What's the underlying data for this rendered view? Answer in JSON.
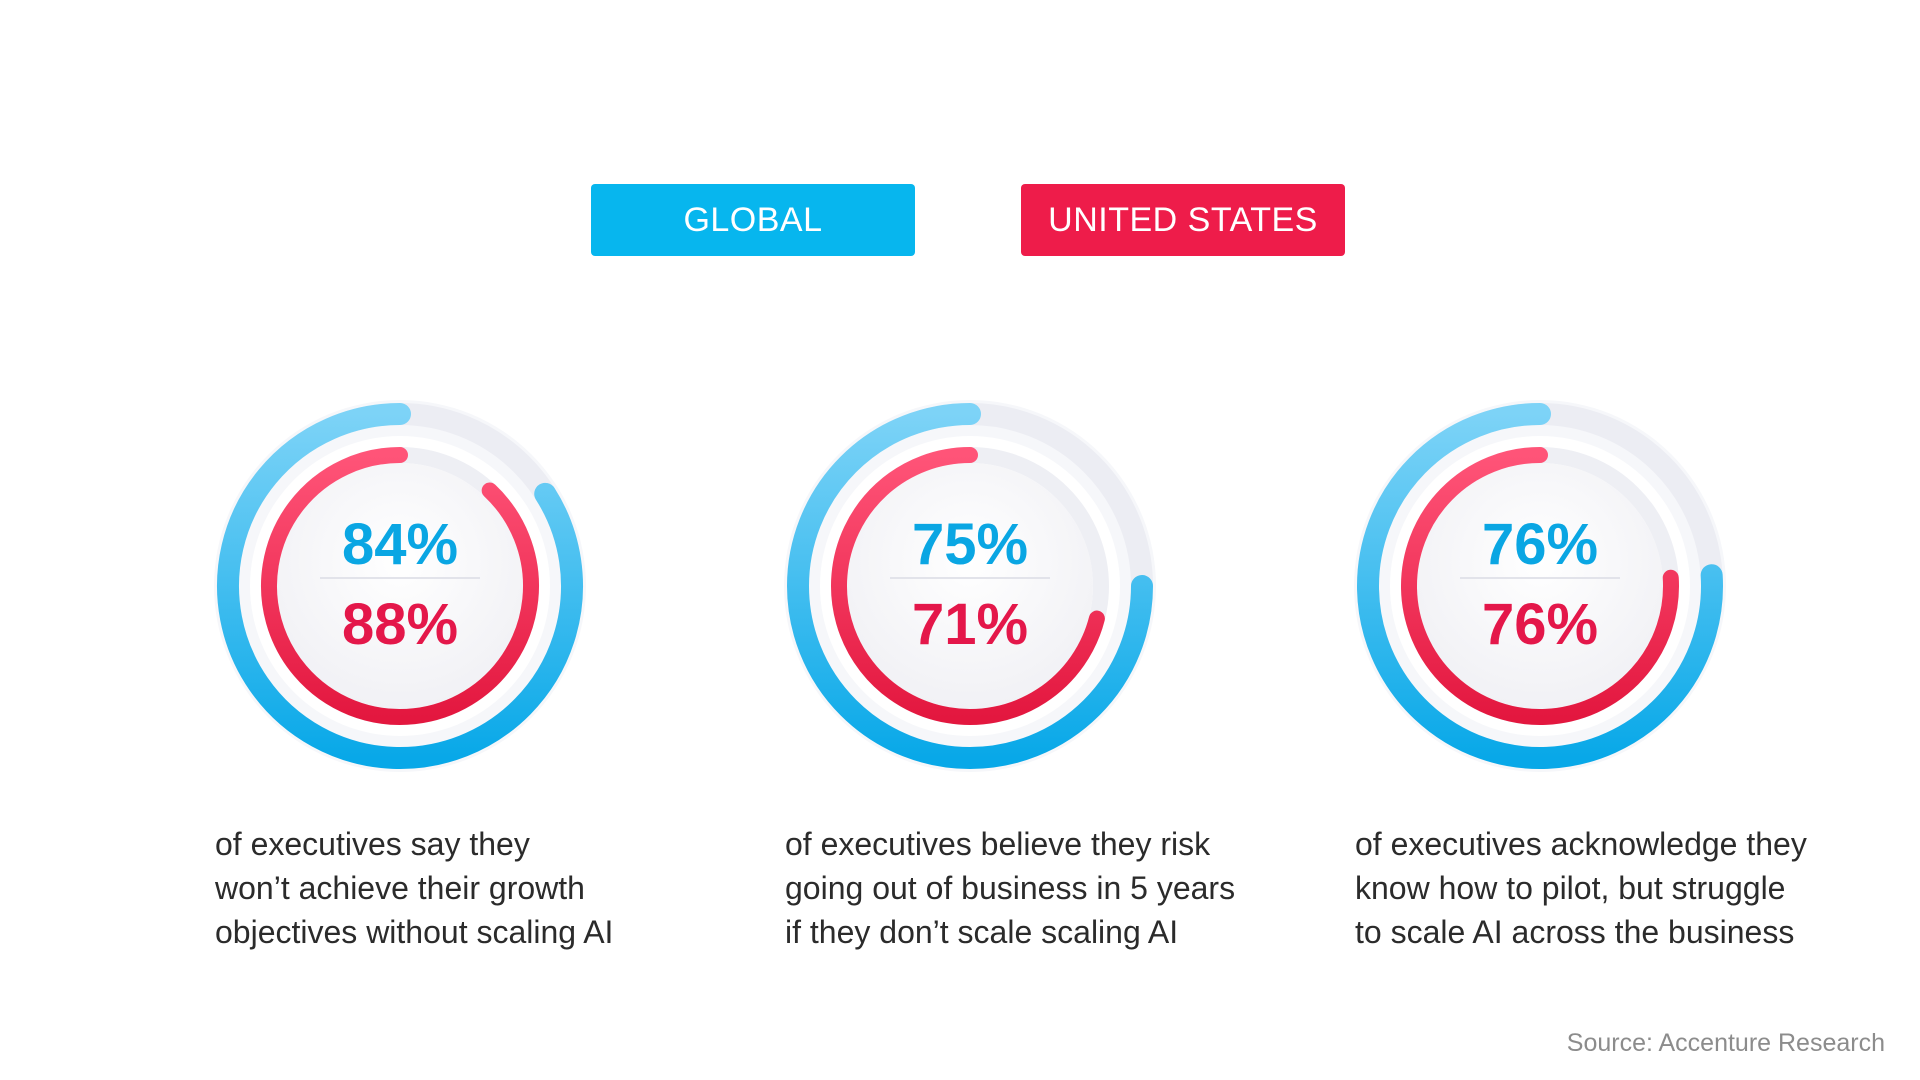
{
  "legend": {
    "global_label": "GLOBAL",
    "us_label": "UNITED STATES",
    "global_color": "#07b6ee",
    "us_color": "#ee1c4a"
  },
  "chart_data": [
    {
      "type": "donut",
      "series": [
        {
          "name": "GLOBAL",
          "value": 84,
          "label": "84%"
        },
        {
          "name": "UNITED STATES",
          "value": 88,
          "label": "88%"
        }
      ],
      "caption": "of executives say they\nwon’t achieve their growth\nobjectives without scaling AI"
    },
    {
      "type": "donut",
      "series": [
        {
          "name": "GLOBAL",
          "value": 75,
          "label": "75%"
        },
        {
          "name": "UNITED STATES",
          "value": 71,
          "label": "71%"
        }
      ],
      "caption": "of executives believe they risk\ngoing out of business in 5 years\nif they don’t scale scaling AI"
    },
    {
      "type": "donut",
      "series": [
        {
          "name": "GLOBAL",
          "value": 76,
          "label": "76%"
        },
        {
          "name": "UNITED STATES",
          "value": 76,
          "label": "76%"
        }
      ],
      "caption": "of executives acknowledge they\nknow how to pilot, but struggle\nto scale AI across the business"
    }
  ],
  "footer": {
    "source": "Source: Accenture Research"
  }
}
